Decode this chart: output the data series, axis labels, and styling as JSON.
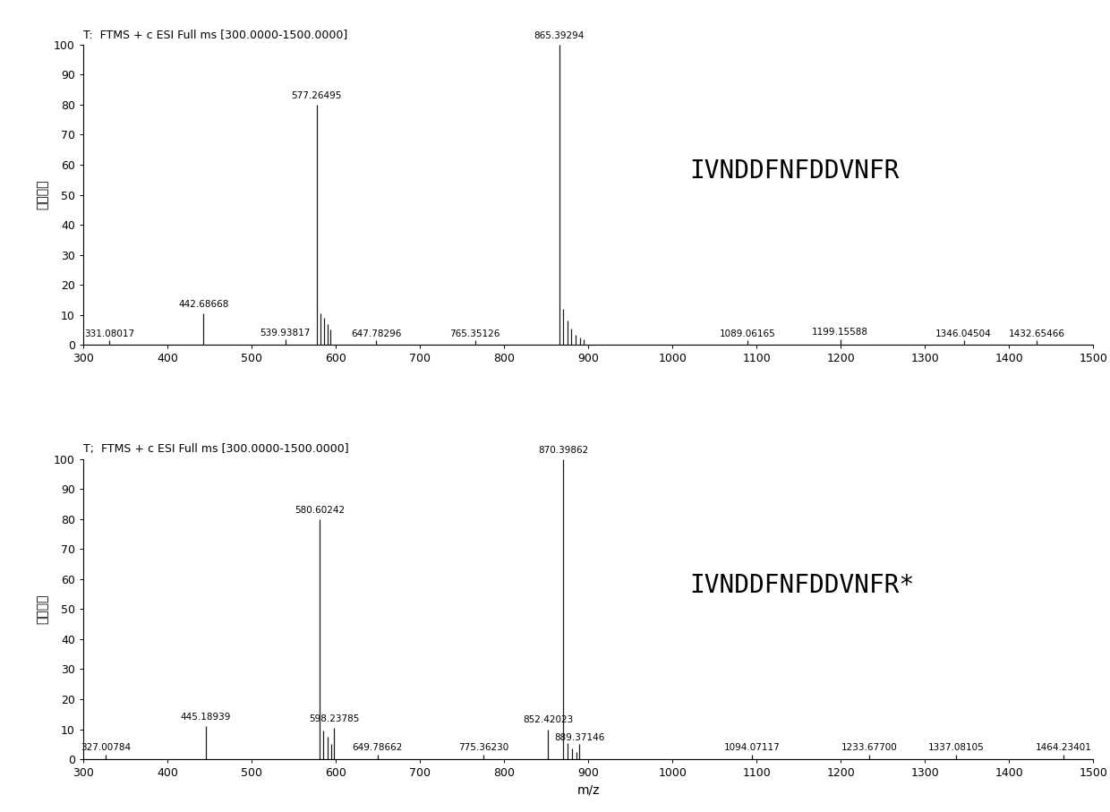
{
  "panel1": {
    "title": "T:  FTMS + c ESI Full ms [300.0000-1500.0000]",
    "peptide": "IVNDDFNFDDVNFR",
    "xlim": [
      300,
      1500
    ],
    "ylim": [
      -2,
      105
    ],
    "plot_ylim": [
      0,
      100
    ],
    "peaks": [
      {
        "mz": 331.08017,
        "intensity": 1.5,
        "label": "331.08017",
        "labeled": true,
        "label_y_override": null
      },
      {
        "mz": 442.68668,
        "intensity": 10.5,
        "label": "442.68668",
        "labeled": true,
        "label_y_override": null
      },
      {
        "mz": 539.93817,
        "intensity": 1.8,
        "label": "539.93817",
        "labeled": true,
        "label_y_override": null
      },
      {
        "mz": 577.26495,
        "intensity": 80.0,
        "label": "577.26495",
        "labeled": true,
        "label_y_override": null
      },
      {
        "mz": 582.0,
        "intensity": 10.5,
        "label": "",
        "labeled": false,
        "label_y_override": null
      },
      {
        "mz": 586.0,
        "intensity": 9.0,
        "label": "",
        "labeled": false,
        "label_y_override": null
      },
      {
        "mz": 590.0,
        "intensity": 7.0,
        "label": "",
        "labeled": false,
        "label_y_override": null
      },
      {
        "mz": 594.0,
        "intensity": 5.0,
        "label": "",
        "labeled": false,
        "label_y_override": null
      },
      {
        "mz": 647.78296,
        "intensity": 1.5,
        "label": "647.78296",
        "labeled": true,
        "label_y_override": null
      },
      {
        "mz": 765.35126,
        "intensity": 1.5,
        "label": "765.35126",
        "labeled": true,
        "label_y_override": null
      },
      {
        "mz": 865.39294,
        "intensity": 100.0,
        "label": "865.39294",
        "labeled": true,
        "label_y_override": null
      },
      {
        "mz": 870.5,
        "intensity": 12.0,
        "label": "",
        "labeled": false,
        "label_y_override": null
      },
      {
        "mz": 875.0,
        "intensity": 8.0,
        "label": "",
        "labeled": false,
        "label_y_override": null
      },
      {
        "mz": 880.0,
        "intensity": 5.5,
        "label": "",
        "labeled": false,
        "label_y_override": null
      },
      {
        "mz": 885.0,
        "intensity": 3.5,
        "label": "",
        "labeled": false,
        "label_y_override": null
      },
      {
        "mz": 890.0,
        "intensity": 2.5,
        "label": "",
        "labeled": false,
        "label_y_override": null
      },
      {
        "mz": 895.0,
        "intensity": 2.0,
        "label": "",
        "labeled": false,
        "label_y_override": null
      },
      {
        "mz": 1089.06165,
        "intensity": 1.5,
        "label": "1089.06165",
        "labeled": true,
        "label_y_override": null
      },
      {
        "mz": 1199.15588,
        "intensity": 2.0,
        "label": "1199.15588",
        "labeled": true,
        "label_y_override": null
      },
      {
        "mz": 1346.04504,
        "intensity": 1.5,
        "label": "1346.04504",
        "labeled": true,
        "label_y_override": null
      },
      {
        "mz": 1432.65466,
        "intensity": 1.5,
        "label": "1432.65466",
        "labeled": true,
        "label_y_override": null
      }
    ]
  },
  "panel2": {
    "title": "T;  FTMS + c ESI Full ms [300.0000-1500.0000]",
    "peptide": "IVNDDFNFDDVNFR*",
    "xlim": [
      300,
      1500
    ],
    "ylim": [
      -2,
      105
    ],
    "plot_ylim": [
      0,
      100
    ],
    "peaks": [
      {
        "mz": 327.00784,
        "intensity": 1.5,
        "label": "327.00784",
        "labeled": true,
        "label_y_override": null
      },
      {
        "mz": 445.18939,
        "intensity": 11.0,
        "label": "445.18939",
        "labeled": true,
        "label_y_override": null
      },
      {
        "mz": 580.60242,
        "intensity": 80.0,
        "label": "580.60242",
        "labeled": true,
        "label_y_override": null
      },
      {
        "mz": 585.5,
        "intensity": 9.5,
        "label": "",
        "labeled": false,
        "label_y_override": null
      },
      {
        "mz": 590.0,
        "intensity": 7.5,
        "label": "",
        "labeled": false,
        "label_y_override": null
      },
      {
        "mz": 594.5,
        "intensity": 5.0,
        "label": "",
        "labeled": false,
        "label_y_override": null
      },
      {
        "mz": 598.23785,
        "intensity": 10.5,
        "label": "598.23785",
        "labeled": true,
        "label_y_override": null
      },
      {
        "mz": 649.78662,
        "intensity": 1.5,
        "label": "649.78662",
        "labeled": true,
        "label_y_override": null
      },
      {
        "mz": 775.3623,
        "intensity": 1.5,
        "label": "775.36230",
        "labeled": true,
        "label_y_override": null
      },
      {
        "mz": 852.42023,
        "intensity": 10.0,
        "label": "852.42023",
        "labeled": true,
        "label_y_override": null
      },
      {
        "mz": 870.39862,
        "intensity": 100.0,
        "label": "870.39862",
        "labeled": true,
        "label_y_override": null
      },
      {
        "mz": 875.5,
        "intensity": 5.5,
        "label": "",
        "labeled": false,
        "label_y_override": null
      },
      {
        "mz": 881.0,
        "intensity": 3.5,
        "label": "",
        "labeled": false,
        "label_y_override": null
      },
      {
        "mz": 886.0,
        "intensity": 2.5,
        "label": "",
        "labeled": false,
        "label_y_override": null
      },
      {
        "mz": 889.37146,
        "intensity": 5.0,
        "label": "889.37146",
        "labeled": true,
        "label_y_override": null
      },
      {
        "mz": 1094.07117,
        "intensity": 1.5,
        "label": "1094.07117",
        "labeled": true,
        "label_y_override": null
      },
      {
        "mz": 1233.677,
        "intensity": 1.5,
        "label": "1233.67700",
        "labeled": true,
        "label_y_override": null
      },
      {
        "mz": 1337.08105,
        "intensity": 1.5,
        "label": "1337.08105",
        "labeled": true,
        "label_y_override": null
      },
      {
        "mz": 1464.23401,
        "intensity": 1.5,
        "label": "1464.23401",
        "labeled": true,
        "label_y_override": null
      }
    ]
  },
  "background_color": "#ffffff",
  "line_color": "#1a1a1a",
  "text_color": "#000000",
  "tick_label_fontsize": 9,
  "annotation_fontsize": 7.5,
  "title_fontsize": 9,
  "peptide_fontsize": 20,
  "ylabel_cn": "相对丰度",
  "xlabel": "m/z"
}
